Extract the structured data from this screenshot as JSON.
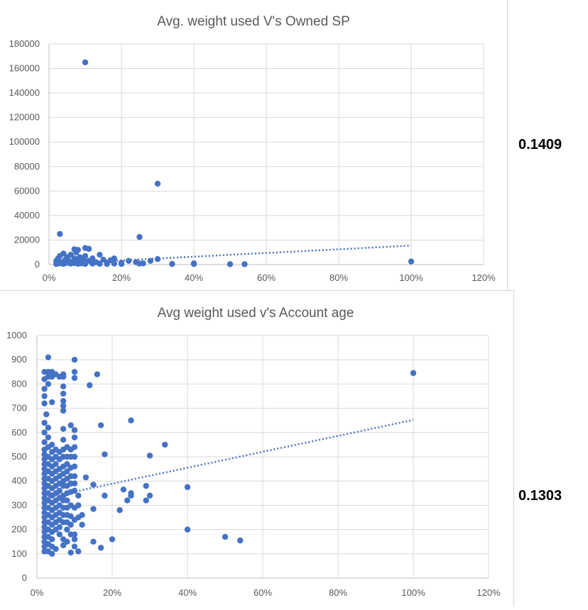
{
  "chart_data": [
    {
      "type": "scatter",
      "title": "Avg. weight used V's Owned SP",
      "xlim": [
        0,
        1.2
      ],
      "ylim": [
        0,
        180000
      ],
      "x_ticks": [
        "0%",
        "20%",
        "40%",
        "60%",
        "80%",
        "100%",
        "120%"
      ],
      "y_ticks": [
        "0",
        "20000",
        "40000",
        "60000",
        "80000",
        "100000",
        "120000",
        "140000",
        "160000",
        "180000"
      ],
      "grid": true,
      "trendline": {
        "type": "linear",
        "x0": 0.02,
        "y0": 700,
        "x1": 1.0,
        "y1": 15500
      },
      "series": [
        {
          "points": [
            [
              0.1,
              165000
            ],
            [
              0.3,
              66000
            ],
            [
              0.03,
              25000
            ],
            [
              0.25,
              22500
            ],
            [
              0.07,
              12500
            ],
            [
              0.08,
              12000
            ],
            [
              0.1,
              13500
            ],
            [
              0.11,
              12800
            ],
            [
              0.14,
              8000
            ],
            [
              0.02,
              3000
            ],
            [
              0.025,
              5000
            ],
            [
              0.03,
              7000
            ],
            [
              0.035,
              2000
            ],
            [
              0.04,
              9000
            ],
            [
              0.045,
              4000
            ],
            [
              0.05,
              6000
            ],
            [
              0.055,
              3000
            ],
            [
              0.06,
              8000
            ],
            [
              0.065,
              2000
            ],
            [
              0.07,
              5000
            ],
            [
              0.075,
              10000
            ],
            [
              0.08,
              3000
            ],
            [
              0.085,
              6000
            ],
            [
              0.09,
              2500
            ],
            [
              0.095,
              4500
            ],
            [
              0.1,
              7000
            ],
            [
              0.11,
              3000
            ],
            [
              0.12,
              5000
            ],
            [
              0.13,
              2000
            ],
            [
              0.15,
              4000
            ],
            [
              0.16,
              1500
            ],
            [
              0.17,
              3500
            ],
            [
              0.18,
              5000
            ],
            [
              0.2,
              1500
            ],
            [
              0.22,
              3000
            ],
            [
              0.24,
              2000
            ],
            [
              0.26,
              1000
            ],
            [
              0.28,
              3000
            ],
            [
              0.3,
              4500
            ],
            [
              0.02,
              500
            ],
            [
              0.03,
              1000
            ],
            [
              0.04,
              500
            ],
            [
              0.05,
              1500
            ],
            [
              0.06,
              800
            ],
            [
              0.07,
              1200
            ],
            [
              0.08,
              600
            ],
            [
              0.09,
              1000
            ],
            [
              0.1,
              500
            ],
            [
              0.12,
              800
            ],
            [
              0.14,
              600
            ],
            [
              0.16,
              500
            ],
            [
              0.18,
              800
            ],
            [
              0.2,
              500
            ],
            [
              0.25,
              800
            ],
            [
              0.34,
              500
            ],
            [
              0.4,
              1000
            ],
            [
              0.4,
              500
            ],
            [
              0.5,
              300
            ],
            [
              0.54,
              300
            ],
            [
              1.0,
              2500
            ]
          ]
        }
      ]
    },
    {
      "type": "scatter",
      "title": "Avg weight used v's Account age",
      "xlim": [
        0,
        1.2
      ],
      "ylim": [
        0,
        1000
      ],
      "x_ticks": [
        "0%",
        "20%",
        "40%",
        "60%",
        "80%",
        "100%",
        "120%"
      ],
      "y_ticks": [
        "0",
        "100",
        "200",
        "300",
        "400",
        "500",
        "600",
        "700",
        "800",
        "900",
        "1000"
      ],
      "grid": true,
      "trendline": {
        "type": "linear",
        "x0": 0.02,
        "y0": 330,
        "x1": 1.0,
        "y1": 652
      },
      "series": [
        {
          "points": [
            [
              0.02,
              850
            ],
            [
              0.02,
              820
            ],
            [
              0.02,
              780
            ],
            [
              0.02,
              750
            ],
            [
              0.02,
              720
            ],
            [
              0.025,
              675
            ],
            [
              0.02,
              640
            ],
            [
              0.02,
              600
            ],
            [
              0.02,
              560
            ],
            [
              0.02,
              530
            ],
            [
              0.02,
              510
            ],
            [
              0.02,
              490
            ],
            [
              0.02,
              470
            ],
            [
              0.02,
              450
            ],
            [
              0.02,
              430
            ],
            [
              0.02,
              410
            ],
            [
              0.02,
              390
            ],
            [
              0.02,
              370
            ],
            [
              0.02,
              350
            ],
            [
              0.02,
              330
            ],
            [
              0.02,
              310
            ],
            [
              0.02,
              290
            ],
            [
              0.02,
              270
            ],
            [
              0.02,
              250
            ],
            [
              0.02,
              230
            ],
            [
              0.02,
              210
            ],
            [
              0.02,
              190
            ],
            [
              0.02,
              170
            ],
            [
              0.02,
              150
            ],
            [
              0.02,
              130
            ],
            [
              0.02,
              110
            ],
            [
              0.03,
              910
            ],
            [
              0.03,
              850
            ],
            [
              0.03,
              830
            ],
            [
              0.03,
              800
            ],
            [
              0.03,
              620
            ],
            [
              0.03,
              580
            ],
            [
              0.03,
              540
            ],
            [
              0.03,
              500
            ],
            [
              0.03,
              470
            ],
            [
              0.03,
              440
            ],
            [
              0.03,
              410
            ],
            [
              0.03,
              380
            ],
            [
              0.03,
              350
            ],
            [
              0.03,
              320
            ],
            [
              0.03,
              290
            ],
            [
              0.03,
              260
            ],
            [
              0.03,
              230
            ],
            [
              0.03,
              200
            ],
            [
              0.03,
              170
            ],
            [
              0.03,
              140
            ],
            [
              0.03,
              110
            ],
            [
              0.04,
              850
            ],
            [
              0.04,
              830
            ],
            [
              0.04,
              725
            ],
            [
              0.04,
              550
            ],
            [
              0.04,
              520
            ],
            [
              0.04,
              490
            ],
            [
              0.04,
              460
            ],
            [
              0.04,
              430
            ],
            [
              0.04,
              400
            ],
            [
              0.04,
              370
            ],
            [
              0.04,
              340
            ],
            [
              0.04,
              310
            ],
            [
              0.04,
              280
            ],
            [
              0.04,
              250
            ],
            [
              0.04,
              220
            ],
            [
              0.04,
              190
            ],
            [
              0.04,
              160
            ],
            [
              0.04,
              130
            ],
            [
              0.04,
              100
            ],
            [
              0.05,
              840
            ],
            [
              0.05,
              530
            ],
            [
              0.05,
              500
            ],
            [
              0.05,
              470
            ],
            [
              0.05,
              440
            ],
            [
              0.05,
              410
            ],
            [
              0.05,
              380
            ],
            [
              0.05,
              350
            ],
            [
              0.05,
              320
            ],
            [
              0.05,
              290
            ],
            [
              0.05,
              260
            ],
            [
              0.05,
              230
            ],
            [
              0.05,
              200
            ],
            [
              0.05,
              120
            ],
            [
              0.06,
              830
            ],
            [
              0.06,
              520
            ],
            [
              0.06,
              490
            ],
            [
              0.06,
              450
            ],
            [
              0.06,
              420
            ],
            [
              0.06,
              390
            ],
            [
              0.06,
              360
            ],
            [
              0.06,
              330
            ],
            [
              0.06,
              300
            ],
            [
              0.06,
              270
            ],
            [
              0.06,
              240
            ],
            [
              0.06,
              210
            ],
            [
              0.06,
              180
            ],
            [
              0.07,
              840
            ],
            [
              0.07,
              830
            ],
            [
              0.07,
              790
            ],
            [
              0.07,
              760
            ],
            [
              0.07,
              730
            ],
            [
              0.07,
              710
            ],
            [
              0.07,
              690
            ],
            [
              0.07,
              615
            ],
            [
              0.07,
              570
            ],
            [
              0.07,
              530
            ],
            [
              0.07,
              500
            ],
            [
              0.07,
              460
            ],
            [
              0.07,
              430
            ],
            [
              0.07,
              400
            ],
            [
              0.07,
              380
            ],
            [
              0.07,
              340
            ],
            [
              0.07,
              320
            ],
            [
              0.07,
              290
            ],
            [
              0.07,
              260
            ],
            [
              0.07,
              230
            ],
            [
              0.07,
              160
            ],
            [
              0.07,
              135
            ],
            [
              0.08,
              540
            ],
            [
              0.08,
              500
            ],
            [
              0.08,
              470
            ],
            [
              0.08,
              440
            ],
            [
              0.08,
              410
            ],
            [
              0.08,
              380
            ],
            [
              0.08,
              350
            ],
            [
              0.08,
              320
            ],
            [
              0.08,
              290
            ],
            [
              0.08,
              260
            ],
            [
              0.08,
              230
            ],
            [
              0.08,
              200
            ],
            [
              0.08,
              150
            ],
            [
              0.09,
              630
            ],
            [
              0.09,
              530
            ],
            [
              0.09,
              500
            ],
            [
              0.09,
              455
            ],
            [
              0.09,
              420
            ],
            [
              0.09,
              390
            ],
            [
              0.09,
              355
            ],
            [
              0.09,
              300
            ],
            [
              0.09,
              255
            ],
            [
              0.09,
              220
            ],
            [
              0.09,
              180
            ],
            [
              0.09,
              105
            ],
            [
              0.1,
              900
            ],
            [
              0.1,
              850
            ],
            [
              0.1,
              825
            ],
            [
              0.1,
              610
            ],
            [
              0.1,
              580
            ],
            [
              0.1,
              540
            ],
            [
              0.1,
              500
            ],
            [
              0.1,
              460
            ],
            [
              0.1,
              420
            ],
            [
              0.1,
              390
            ],
            [
              0.1,
              360
            ],
            [
              0.1,
              290
            ],
            [
              0.1,
              240
            ],
            [
              0.1,
              180
            ],
            [
              0.1,
              160
            ],
            [
              0.1,
              130
            ],
            [
              0.11,
              340
            ],
            [
              0.11,
              300
            ],
            [
              0.11,
              250
            ],
            [
              0.11,
              110
            ],
            [
              0.12,
              260
            ],
            [
              0.12,
              220
            ],
            [
              0.13,
              415
            ],
            [
              0.14,
              795
            ],
            [
              0.15,
              385
            ],
            [
              0.15,
              285
            ],
            [
              0.15,
              150
            ],
            [
              0.16,
              840
            ],
            [
              0.17,
              630
            ],
            [
              0.17,
              125
            ],
            [
              0.18,
              510
            ],
            [
              0.18,
              340
            ],
            [
              0.2,
              160
            ],
            [
              0.22,
              280
            ],
            [
              0.23,
              365
            ],
            [
              0.24,
              320
            ],
            [
              0.25,
              340
            ],
            [
              0.25,
              350
            ],
            [
              0.25,
              650
            ],
            [
              0.29,
              380
            ],
            [
              0.29,
              320
            ],
            [
              0.3,
              505
            ],
            [
              0.3,
              340
            ],
            [
              0.34,
              550
            ],
            [
              0.4,
              375
            ],
            [
              0.4,
              200
            ],
            [
              0.5,
              170
            ],
            [
              0.54,
              155
            ],
            [
              1.0,
              845
            ]
          ]
        }
      ]
    }
  ],
  "side_values": [
    "0.1409",
    "0.1303"
  ]
}
